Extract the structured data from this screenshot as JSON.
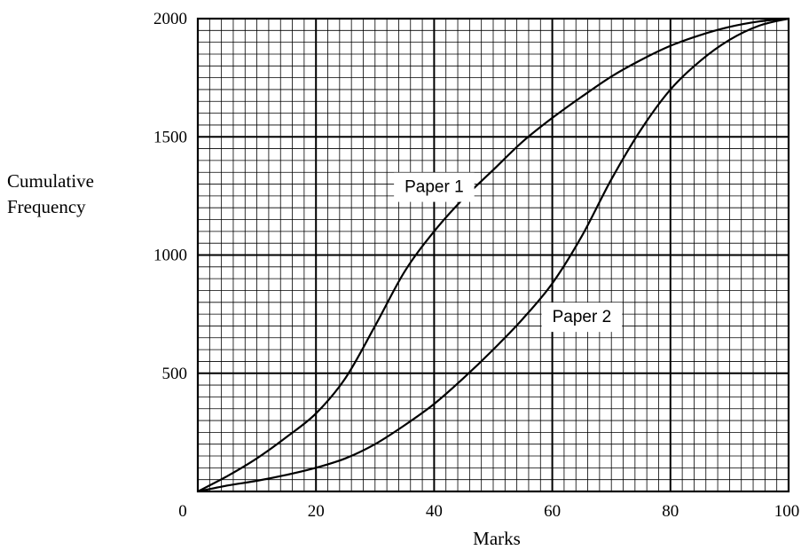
{
  "chart_data": {
    "type": "line",
    "title": "",
    "xlabel": "Marks",
    "ylabel_lines": [
      "Cumulative",
      "Frequency"
    ],
    "xlim": [
      0,
      100
    ],
    "ylim": [
      0,
      2000
    ],
    "x_ticks": [
      0,
      20,
      40,
      60,
      80,
      100
    ],
    "y_ticks": [
      500,
      1000,
      1500,
      2000
    ],
    "x_minor_step": 2,
    "y_minor_step": 50,
    "grid": true,
    "legend": "none",
    "series": [
      {
        "name": "Paper 1",
        "x": [
          0,
          5,
          10,
          15,
          20,
          25,
          30,
          35,
          40,
          45,
          50,
          55,
          60,
          65,
          70,
          75,
          80,
          85,
          90,
          95,
          100
        ],
        "y": [
          0,
          65,
          140,
          230,
          330,
          480,
          700,
          930,
          1100,
          1240,
          1360,
          1480,
          1580,
          1670,
          1755,
          1825,
          1885,
          1930,
          1965,
          1988,
          2000
        ]
      },
      {
        "name": "Paper 2",
        "x": [
          0,
          5,
          10,
          15,
          20,
          25,
          30,
          35,
          40,
          45,
          50,
          55,
          60,
          65,
          70,
          75,
          80,
          85,
          90,
          95,
          100
        ],
        "y": [
          0,
          25,
          45,
          70,
          100,
          140,
          200,
          280,
          370,
          480,
          600,
          730,
          880,
          1080,
          1320,
          1530,
          1700,
          1820,
          1910,
          1970,
          2000
        ]
      }
    ],
    "annotations": [
      {
        "text": "Paper 1",
        "x": 40,
        "y": 1285
      },
      {
        "text": "Paper 2",
        "x": 65,
        "y": 735
      }
    ]
  }
}
